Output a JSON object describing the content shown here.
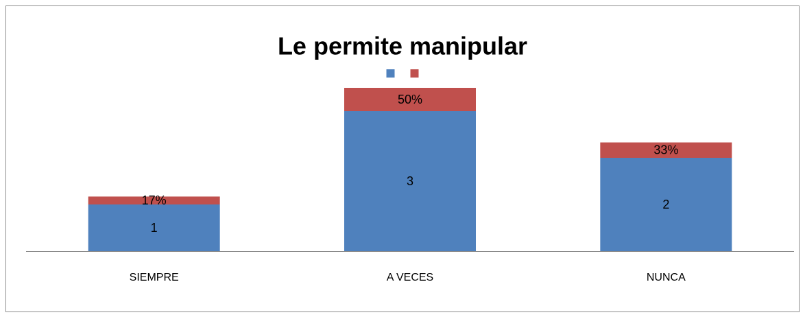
{
  "chart_data": {
    "type": "stacked_bar",
    "title": "Le permite manipular",
    "categories": [
      "SIEMPRE",
      "A VECES",
      "NUNCA"
    ],
    "series": [
      {
        "name": null,
        "color": "#4f81bd",
        "values": [
          1,
          3,
          2
        ]
      },
      {
        "name": null,
        "color": "#c0504d",
        "values": [
          0.17,
          0.5,
          0.33
        ],
        "value_labels": [
          "17%",
          "50%",
          "33%"
        ]
      }
    ],
    "ylim": [
      0,
      4
    ],
    "legend": "top"
  }
}
